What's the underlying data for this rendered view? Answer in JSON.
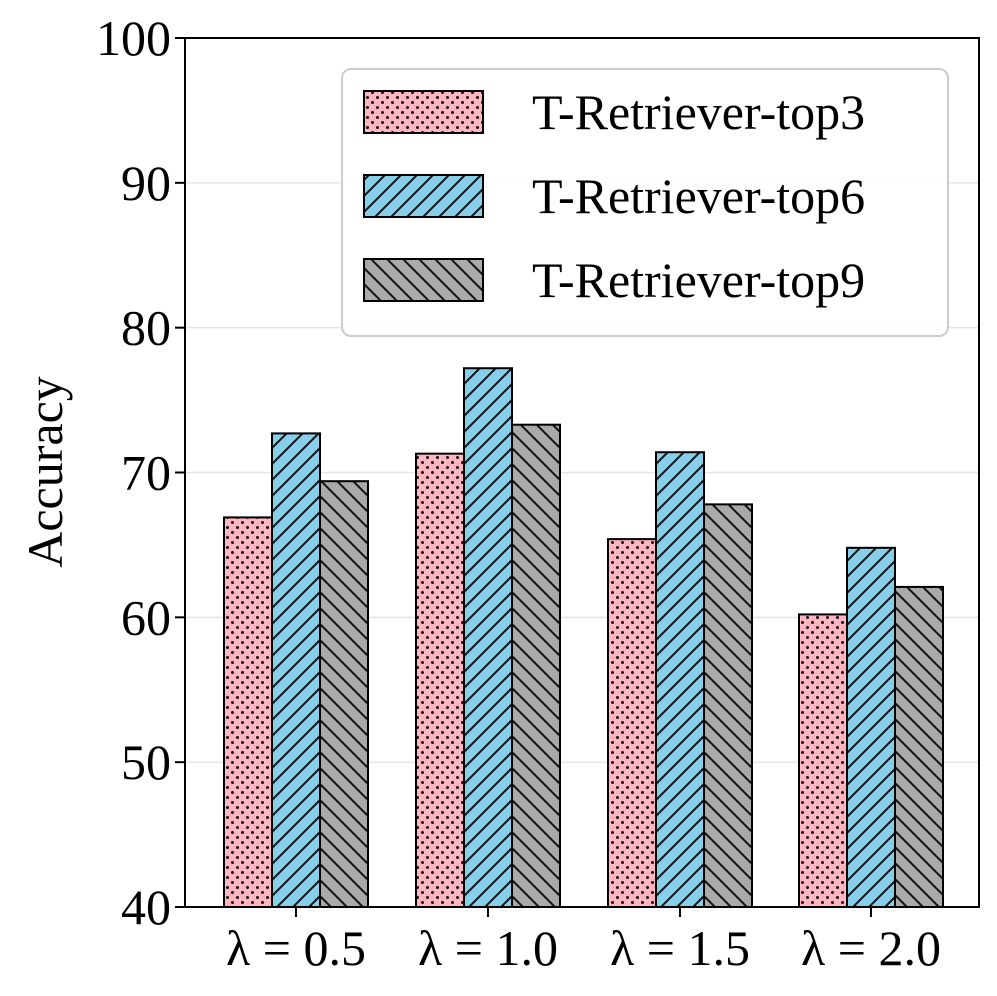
{
  "chart_data": {
    "type": "bar",
    "title": "",
    "xlabel": "",
    "ylabel": "Accuracy",
    "categories": [
      "λ = 0.5",
      "λ = 1.0",
      "λ = 1.5",
      "λ = 2.0"
    ],
    "ylim": [
      40,
      100
    ],
    "yticks": [
      40,
      50,
      60,
      70,
      80,
      90,
      100
    ],
    "grid": "horizontal",
    "legend_position": "top-right",
    "series": [
      {
        "name": "T-Retriever-top3",
        "values": [
          66.9,
          71.3,
          65.4,
          60.2
        ],
        "color": "#FFB6C1",
        "hatch": "dots"
      },
      {
        "name": "T-Retriever-top6",
        "values": [
          72.7,
          77.2,
          71.4,
          64.8
        ],
        "color": "#87CEEB",
        "hatch": "forward-diagonal"
      },
      {
        "name": "T-Retriever-top9",
        "values": [
          69.4,
          73.3,
          67.8,
          62.1
        ],
        "color": "#A9A9A9",
        "hatch": "back-diagonal"
      }
    ]
  }
}
